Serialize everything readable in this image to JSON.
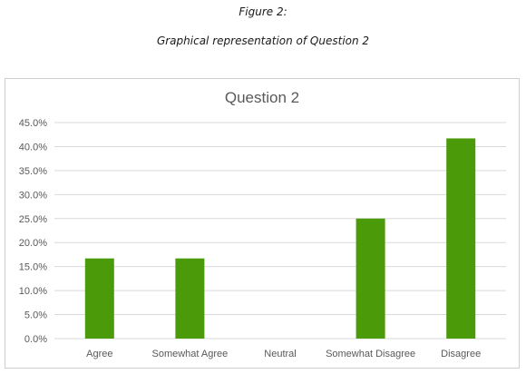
{
  "figure": {
    "label": "Figure 2:",
    "caption": "Graphical representation of Question 2"
  },
  "chart_data": {
    "type": "bar",
    "title": "Question 2",
    "categories": [
      "Agree",
      "Somewhat Agree",
      "Neutral",
      "Somewhat Disagree",
      "Disagree"
    ],
    "values": [
      16.7,
      16.7,
      0.0,
      25.0,
      41.7
    ],
    "yticks": [
      "0.0%",
      "5.0%",
      "10.0%",
      "15.0%",
      "20.0%",
      "25.0%",
      "30.0%",
      "35.0%",
      "40.0%",
      "45.0%"
    ],
    "ylim": [
      0,
      45
    ],
    "grid": true,
    "legend": "none",
    "bar_color": "#4a9a0a",
    "grid_color": "#d9d9d9",
    "title_color": "#595959",
    "label_color": "#595959"
  }
}
